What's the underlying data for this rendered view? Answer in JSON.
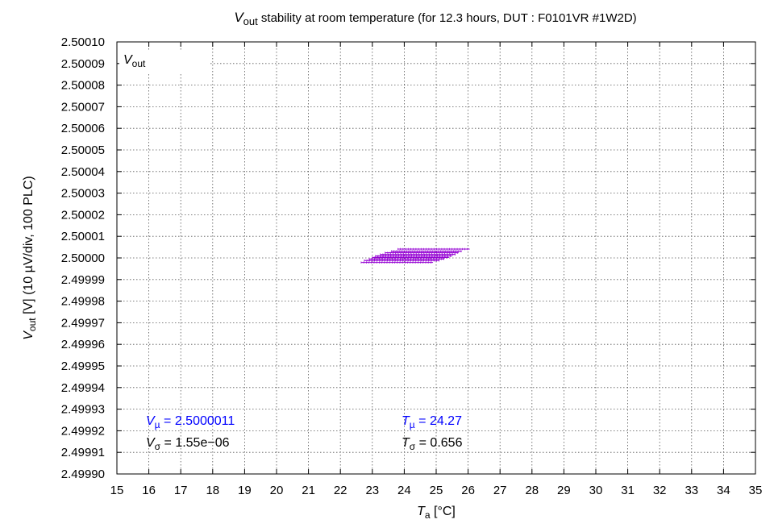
{
  "chart_data": {
    "type": "scatter",
    "title": {
      "sym": "V",
      "sub": "out",
      "rest": " stability at room temperature (for 12.3 hours, DUT : F0101VR #1W2D)"
    },
    "xlabel": {
      "sym": "T",
      "sub": "a",
      "rest": " [°C]"
    },
    "ylabel": {
      "sym": "V",
      "sub": "out",
      "rest": " [V] (10 µV/div, 100 PLC)"
    },
    "xlim": [
      15,
      35
    ],
    "ylim": [
      2.4999,
      2.5001
    ],
    "xticks": [
      15,
      16,
      17,
      18,
      19,
      20,
      21,
      22,
      23,
      24,
      25,
      26,
      27,
      28,
      29,
      30,
      31,
      32,
      33,
      34,
      35
    ],
    "yticks": [
      "2.49990",
      "2.49991",
      "2.49992",
      "2.49993",
      "2.49994",
      "2.49995",
      "2.49996",
      "2.49997",
      "2.49998",
      "2.49999",
      "2.50000",
      "2.50001",
      "2.50002",
      "2.50003",
      "2.50004",
      "2.50005",
      "2.50006",
      "2.50007",
      "2.50008",
      "2.50009",
      "2.50010"
    ],
    "grid": true,
    "legend": {
      "position": "top-left",
      "sym": "V",
      "sub": "out"
    },
    "series_color": "#9400d3",
    "series": [
      {
        "segments": [
          {
            "x0": 22.65,
            "x1": 24.9,
            "y": 2.4999979
          },
          {
            "x0": 22.75,
            "x1": 25.1,
            "y": 2.4999988
          },
          {
            "x0": 22.9,
            "x1": 25.25,
            "y": 2.4999995
          },
          {
            "x0": 23.0,
            "x1": 25.4,
            "y": 2.5000002
          },
          {
            "x0": 23.1,
            "x1": 25.5,
            "y": 2.5000009
          },
          {
            "x0": 23.25,
            "x1": 25.6,
            "y": 2.5000016
          },
          {
            "x0": 23.4,
            "x1": 25.7,
            "y": 2.5000024
          },
          {
            "x0": 23.6,
            "x1": 25.8,
            "y": 2.5000031
          },
          {
            "x0": 23.8,
            "x1": 26.05,
            "y": 2.5000041
          }
        ]
      }
    ],
    "stats": {
      "v_mu": {
        "sym": "V",
        "sub": "µ",
        "text": " = 2.5000011",
        "color": "#0000ff"
      },
      "v_sigma": {
        "sym": "V",
        "sub": "σ",
        "text": " = 1.55e−06",
        "color": "#000000"
      },
      "t_mu": {
        "sym": "T",
        "sub": "µ",
        "text": " = 24.27",
        "color": "#0000ff"
      },
      "t_sigma": {
        "sym": "T",
        "sub": "σ",
        "text": " = 0.656",
        "color": "#000000"
      }
    }
  }
}
